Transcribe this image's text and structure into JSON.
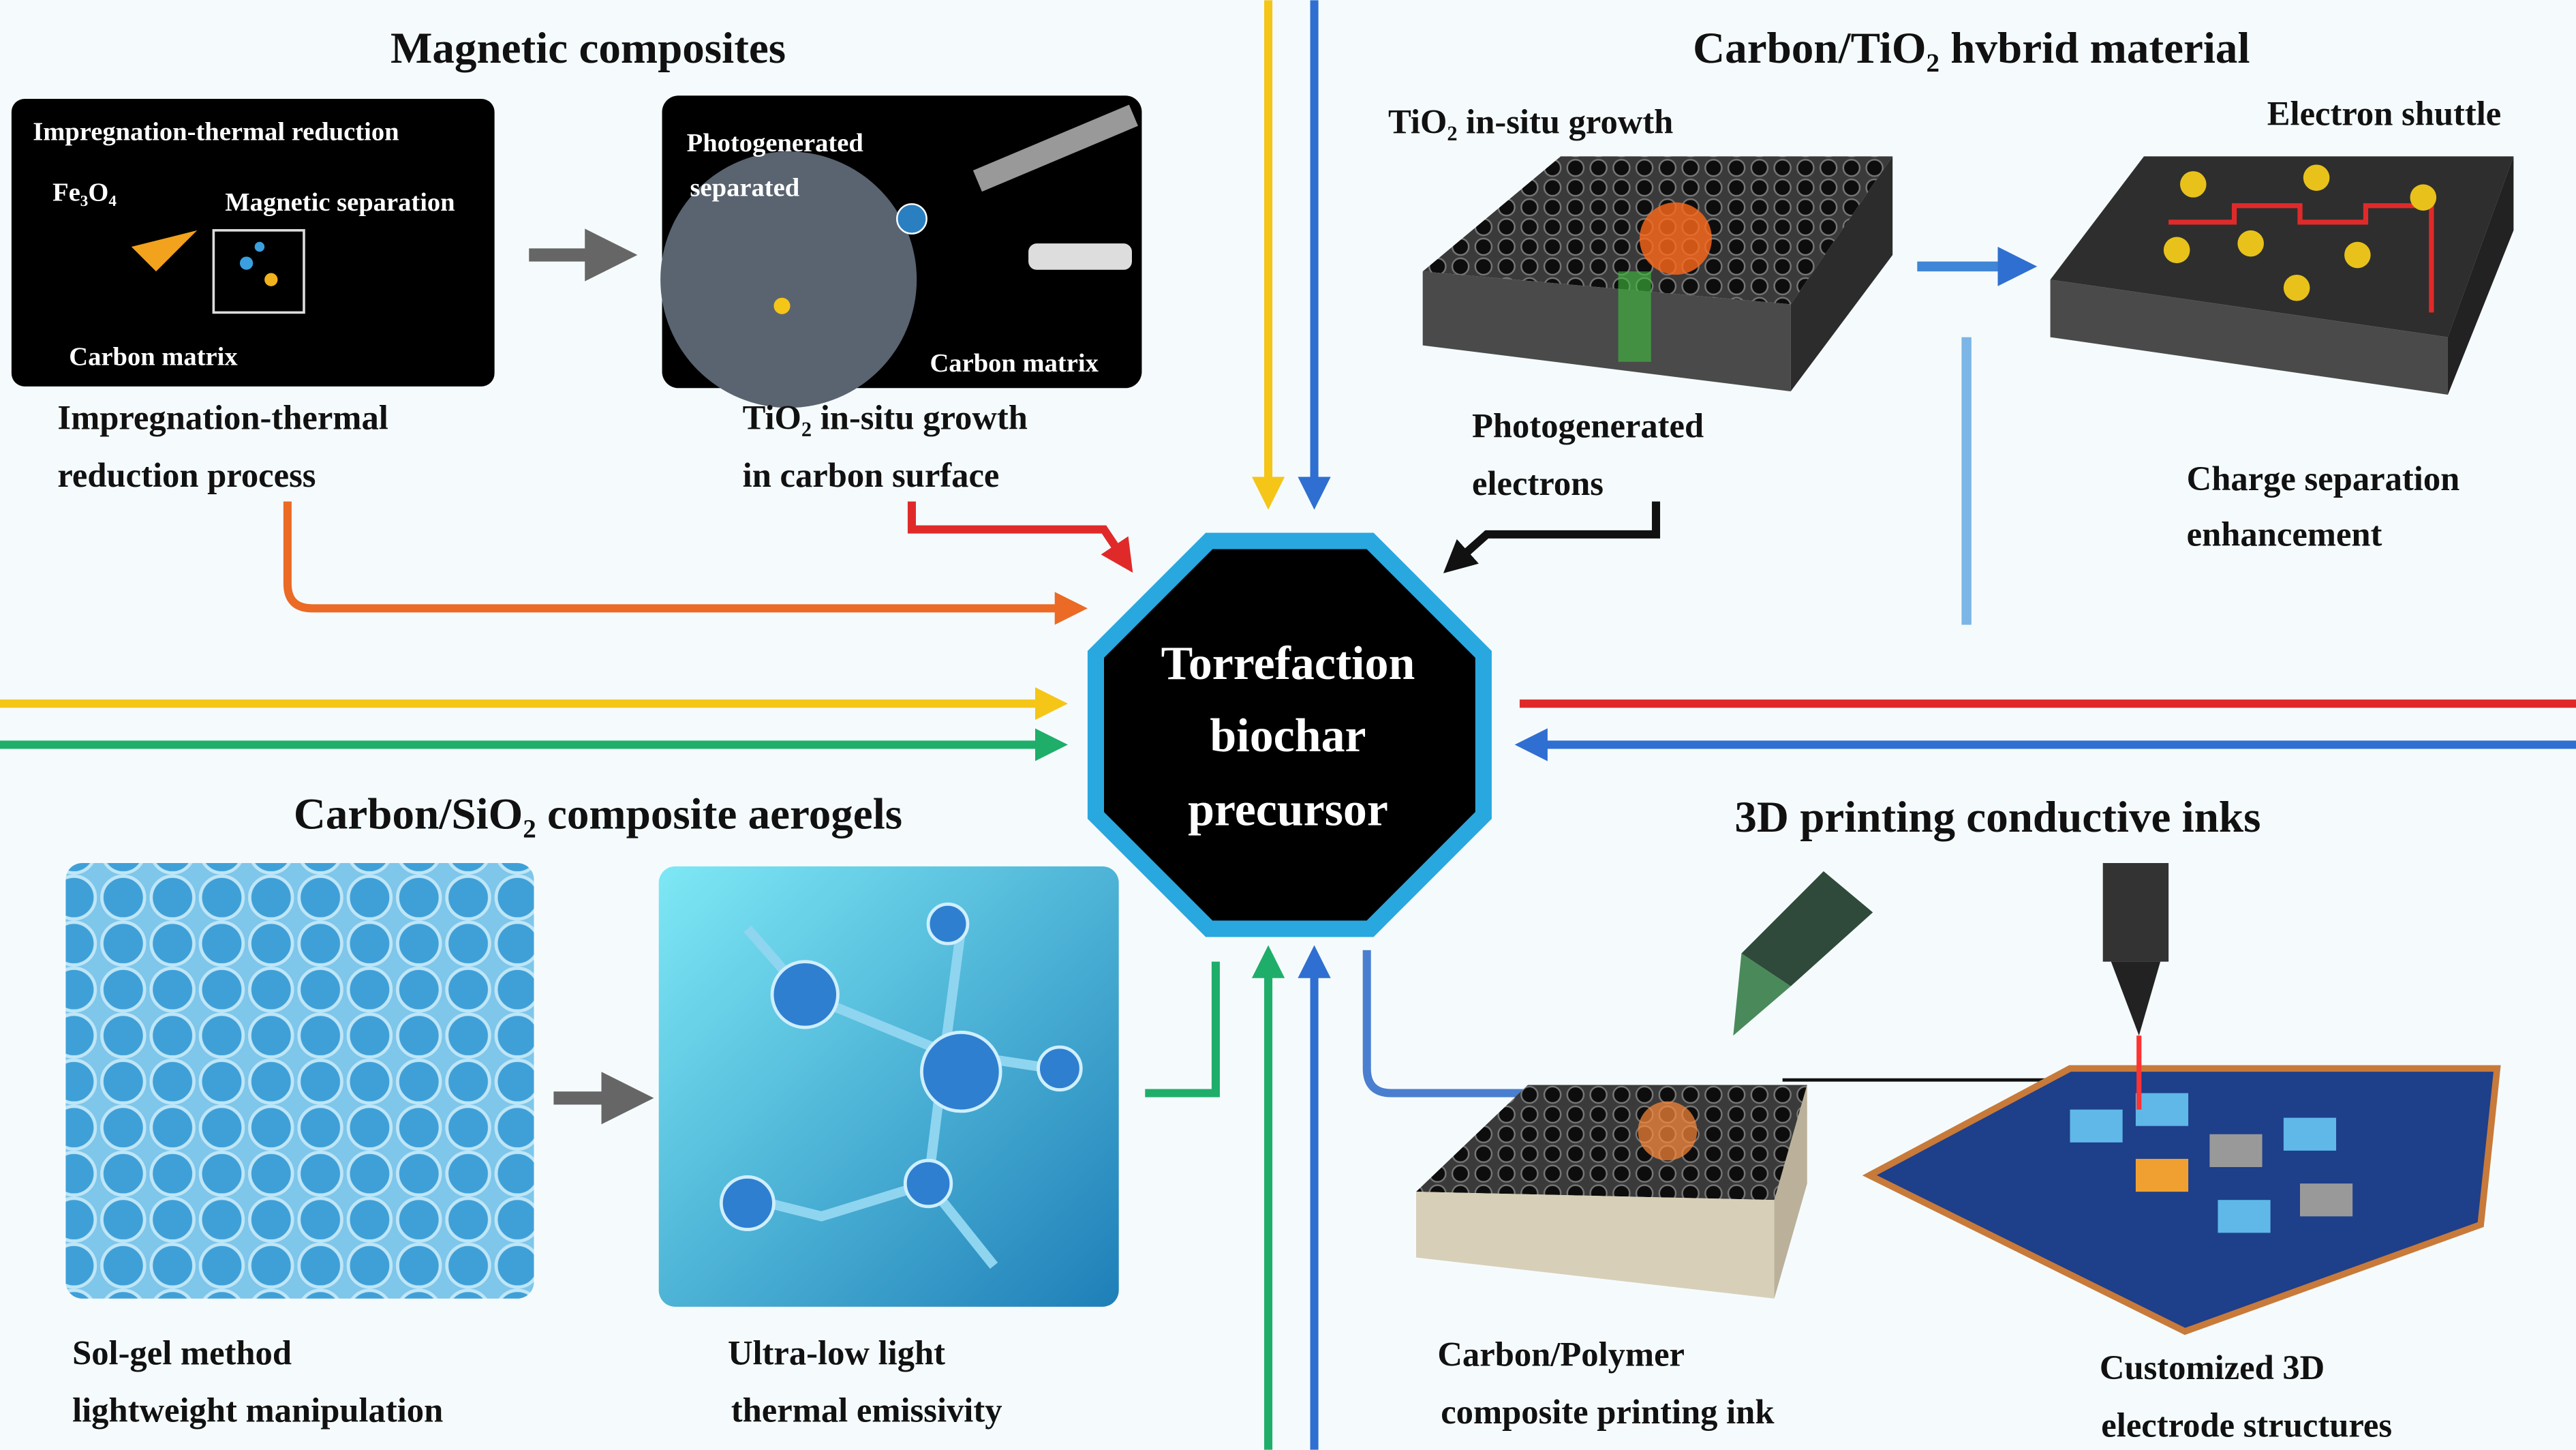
{
  "center": {
    "lines": [
      "Torrefaction",
      "biochar",
      "precursor"
    ]
  },
  "magnetic": {
    "title": "Magnetic composites",
    "panel1": {
      "heading": "Impregnation-thermal reduction",
      "fe": "Fe₃O₄",
      "separation": "Magnetic separation",
      "matrix": "Carbon matrix"
    },
    "panel2": {
      "lines": [
        "Photogenerated",
        "separated"
      ],
      "matrix": "Carbon matrix"
    },
    "caption1": [
      "Impregnation-thermal",
      "reduction process"
    ],
    "caption2": [
      "TiO₂ in-situ growth",
      "in carbon surface"
    ]
  },
  "tio2": {
    "title": "Carbon/TiO₂ hvbrid material",
    "growth": "TiO₂ in-situ growth",
    "shuttle": "Electron shuttle",
    "electrons": [
      "Photogenerated",
      "electrons"
    ],
    "charge": [
      "Charge separation",
      "enhancement"
    ]
  },
  "sio2": {
    "title": "Carbon/SiO₂ composite aerogels",
    "caption1": [
      "Sol-gel method",
      "lightweight manipulation"
    ],
    "caption2": [
      "Ultra-low light",
      "thermal emissivity"
    ]
  },
  "printing": {
    "title": "3D printing conductive inks",
    "caption1": [
      "Carbon/Polymer",
      "composite printing ink"
    ],
    "caption2": [
      "Customized 3D",
      "electrode structures"
    ]
  }
}
